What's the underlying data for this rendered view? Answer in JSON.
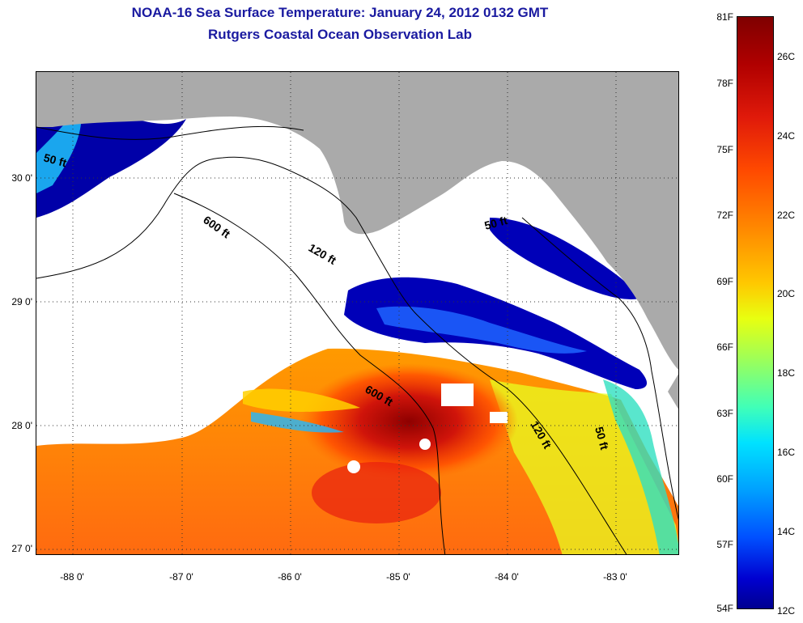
{
  "header": {
    "title": "NOAA-16 Sea Surface Temperature:  January 24, 2012 0132 GMT",
    "subtitle": "Rutgers Coastal Ocean Observation Lab"
  },
  "map": {
    "region": "Northeastern Gulf of Mexico / Florida Big Bend",
    "lat_ticks": [
      "30 0'",
      "29 0'",
      "28 0'",
      "27 0'"
    ],
    "lon_ticks": [
      "-88 0'",
      "-87 0'",
      "-86 0'",
      "-85 0'",
      "-84 0'",
      "-83 0'"
    ],
    "depth_contours": {
      "c50_west": "50 ft",
      "c600_west": "600 ft",
      "c120_mid": "120 ft",
      "c50_east": "50 ft",
      "c600_south": "600 ft",
      "c120_south": "120 ft",
      "c50_south": "50 ft"
    },
    "colors": {
      "land": "#aaaaaa",
      "cloud": "#ffffff",
      "cold": "#0000a0",
      "warm": "#ff8c00",
      "hot": "#9a0000"
    }
  },
  "colorbar": {
    "fahrenheit": [
      "81F",
      "78F",
      "75F",
      "72F",
      "69F",
      "66F",
      "63F",
      "60F",
      "57F",
      "54F"
    ],
    "celsius": [
      "26C",
      "24C",
      "22C",
      "20C",
      "18C",
      "16C",
      "14C",
      "12C"
    ],
    "min_f": 54,
    "max_f": 81
  }
}
